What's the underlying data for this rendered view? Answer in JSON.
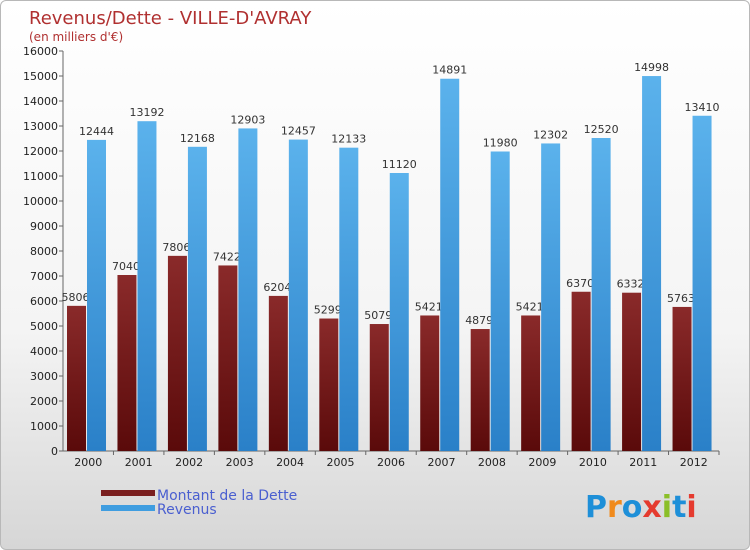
{
  "chart_data": {
    "type": "bar",
    "title": "Revenus/Dette - VILLE-D'AVRAY",
    "subtitle": "(en milliers d'€)",
    "categories": [
      "2000",
      "2001",
      "2002",
      "2003",
      "2004",
      "2005",
      "2006",
      "2007",
      "2008",
      "2009",
      "2010",
      "2011",
      "2012"
    ],
    "series": [
      {
        "name": "Montant de la Dette",
        "color": "#7a1f1f",
        "values": [
          5806,
          7040,
          7806,
          7422,
          6204,
          5299,
          5079,
          5421,
          4879,
          5421,
          6370,
          6332,
          5763
        ]
      },
      {
        "name": "Revenus",
        "color": "#3f9de0",
        "values": [
          12444,
          13192,
          12168,
          12903,
          12457,
          12133,
          11120,
          14891,
          11980,
          12302,
          12520,
          14998,
          13410
        ]
      }
    ],
    "ylim": [
      0,
      16000
    ],
    "yticks": [
      0,
      1000,
      2000,
      3000,
      4000,
      5000,
      6000,
      7000,
      8000,
      9000,
      10000,
      11000,
      12000,
      13000,
      14000,
      15000,
      16000
    ],
    "grid": false,
    "legend_position": "bottom-left"
  },
  "brand": {
    "text": "Proxiti",
    "letters": [
      "P",
      "r",
      "o",
      "x",
      "i",
      "t",
      "i"
    ],
    "colors": [
      "#1e8fd8",
      "#f08a1c",
      "#1e8fd8",
      "#e53b2f",
      "#8bbf28",
      "#1e8fd8",
      "#e53b2f"
    ]
  }
}
